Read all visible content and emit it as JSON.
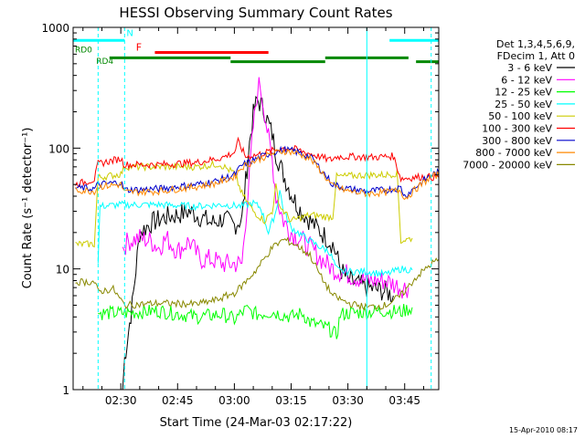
{
  "chart_data": {
    "type": "line",
    "title": "HESSI Observing Summary Count Rates",
    "xlabel": "Start Time (24-Mar-03 02:17:22)",
    "ylabel": "Count Rate (s⁻¹ detector⁻¹)",
    "yscale": "log",
    "ylim": [
      1,
      1000
    ],
    "xlim_minutes": [
      17.4,
      114
    ],
    "x_ticks": [
      {
        "label": "02:30",
        "t": 30
      },
      {
        "label": "02:45",
        "t": 45
      },
      {
        "label": "03:00",
        "t": 60
      },
      {
        "label": "03:15",
        "t": 75
      },
      {
        "label": "03:30",
        "t": 90
      },
      {
        "label": "03:45",
        "t": 105
      }
    ],
    "y_ticks": [
      {
        "label": "1",
        "v": 1
      },
      {
        "label": "10",
        "v": 10
      },
      {
        "label": "100",
        "v": 100
      },
      {
        "label": "1000",
        "v": 1000
      }
    ],
    "legend": {
      "header": [
        "Det 1,3,4,5,6,9,",
        "FDecim 1, Att 0"
      ],
      "placement": "right"
    },
    "series": [
      {
        "name": "3 - 6 keV",
        "color": "#000000",
        "points": [
          [
            30.5,
            1
          ],
          [
            31,
            1.8
          ],
          [
            32,
            3
          ],
          [
            33,
            5
          ],
          [
            34,
            10
          ],
          [
            35,
            20
          ],
          [
            38,
            24
          ],
          [
            42,
            27
          ],
          [
            45,
            28
          ],
          [
            48,
            30
          ],
          [
            51,
            27
          ],
          [
            54,
            24
          ],
          [
            57,
            26
          ],
          [
            60,
            23
          ],
          [
            62,
            26
          ],
          [
            64,
            110
          ],
          [
            65,
            190
          ],
          [
            66,
            250
          ],
          [
            67,
            230
          ],
          [
            68,
            200
          ],
          [
            69,
            160
          ],
          [
            70,
            130
          ],
          [
            71,
            90
          ],
          [
            73,
            60
          ],
          [
            75,
            42
          ],
          [
            77,
            32
          ],
          [
            80,
            25
          ],
          [
            83,
            20
          ],
          [
            86,
            16
          ],
          [
            87,
            13
          ],
          [
            88,
            10
          ],
          [
            90,
            8
          ],
          [
            95,
            7
          ],
          [
            100,
            6.5
          ],
          [
            102,
            6
          ]
        ]
      },
      {
        "name": "6 - 12 keV",
        "color": "#ff00ff",
        "points": [
          [
            30.5,
            15
          ],
          [
            32,
            17
          ],
          [
            35,
            18
          ],
          [
            38,
            17
          ],
          [
            40,
            15
          ],
          [
            42,
            18
          ],
          [
            45,
            14
          ],
          [
            48,
            17
          ],
          [
            51,
            12
          ],
          [
            54,
            12
          ],
          [
            57,
            11
          ],
          [
            60,
            11
          ],
          [
            62,
            11
          ],
          [
            64,
            60
          ],
          [
            65,
            150
          ],
          [
            66,
            280
          ],
          [
            66.5,
            330
          ],
          [
            67,
            300
          ],
          [
            68,
            200
          ],
          [
            69,
            120
          ],
          [
            70,
            80
          ],
          [
            71,
            40
          ],
          [
            73,
            25
          ],
          [
            75,
            20
          ],
          [
            77,
            18
          ],
          [
            80,
            15
          ],
          [
            83,
            12
          ],
          [
            86,
            10
          ],
          [
            90,
            9
          ],
          [
            95,
            8
          ],
          [
            100,
            8
          ],
          [
            104,
            7
          ],
          [
            106,
            7
          ]
        ]
      },
      {
        "name": "12 - 25 keV",
        "color": "#00ff00",
        "points": [
          [
            24,
            4.3
          ],
          [
            30,
            4.3
          ],
          [
            40,
            4.5
          ],
          [
            50,
            4
          ],
          [
            57,
            4.2
          ],
          [
            60,
            3.8
          ],
          [
            63,
            4.6
          ],
          [
            66,
            4.2
          ],
          [
            70,
            4.4
          ],
          [
            75,
            4
          ],
          [
            78,
            4.3
          ],
          [
            80,
            3.6
          ],
          [
            85,
            3.2
          ],
          [
            87,
            2.8
          ],
          [
            88,
            4.2
          ],
          [
            90,
            4.3
          ],
          [
            100,
            4.5
          ],
          [
            104,
            4.4
          ],
          [
            107,
            4.8
          ]
        ]
      },
      {
        "name": "25 - 50 keV",
        "color": "#00ffff",
        "points": [
          [
            24,
            11
          ],
          [
            24.5,
            33
          ],
          [
            30,
            34
          ],
          [
            40,
            34
          ],
          [
            50,
            33
          ],
          [
            57,
            34
          ],
          [
            62,
            33
          ],
          [
            65,
            35
          ],
          [
            67,
            32
          ],
          [
            69,
            20
          ],
          [
            71,
            30
          ],
          [
            72,
            45
          ],
          [
            73,
            30
          ],
          [
            75,
            22
          ],
          [
            80,
            17
          ],
          [
            83,
            15
          ],
          [
            85,
            14
          ],
          [
            86,
            12
          ],
          [
            87,
            10
          ],
          [
            88,
            9.5
          ],
          [
            95,
            9.5
          ],
          [
            100,
            9
          ],
          [
            104,
            10
          ],
          [
            107,
            9.8
          ]
        ]
      },
      {
        "name": "50 - 100 keV",
        "color": "#cccc00",
        "points": [
          [
            18,
            16
          ],
          [
            23,
            16
          ],
          [
            24,
            57
          ],
          [
            30,
            61
          ],
          [
            31,
            70
          ],
          [
            40,
            70
          ],
          [
            50,
            70
          ],
          [
            56,
            74
          ],
          [
            60,
            62
          ],
          [
            62,
            42
          ],
          [
            65,
            30
          ],
          [
            68,
            25
          ],
          [
            70,
            30
          ],
          [
            71,
            48
          ],
          [
            72,
            33
          ],
          [
            75,
            25
          ],
          [
            80,
            28
          ],
          [
            84,
            27
          ],
          [
            86,
            27
          ],
          [
            87,
            58
          ],
          [
            95,
            60
          ],
          [
            100,
            60
          ],
          [
            103,
            62
          ],
          [
            104,
            17
          ],
          [
            107,
            18
          ]
        ]
      },
      {
        "name": "100 - 300 keV",
        "color": "#ff0000",
        "points": [
          [
            18,
            50
          ],
          [
            23,
            55
          ],
          [
            24,
            74
          ],
          [
            30,
            82
          ],
          [
            31,
            73
          ],
          [
            40,
            73
          ],
          [
            50,
            76
          ],
          [
            54,
            80
          ],
          [
            57,
            84
          ],
          [
            60,
            92
          ],
          [
            61,
            113
          ],
          [
            63,
            85
          ],
          [
            66,
            88
          ],
          [
            70,
            95
          ],
          [
            73,
            100
          ],
          [
            76,
            98
          ],
          [
            80,
            90
          ],
          [
            85,
            80
          ],
          [
            86,
            81
          ],
          [
            87,
            85
          ],
          [
            92,
            85
          ],
          [
            97,
            84
          ],
          [
            102,
            86
          ],
          [
            104,
            56
          ],
          [
            110,
            58
          ],
          [
            114,
            57
          ]
        ]
      },
      {
        "name": "300 - 800 keV",
        "color": "#0000cc",
        "points": [
          [
            18,
            47
          ],
          [
            23,
            46
          ],
          [
            24,
            50
          ],
          [
            30,
            52
          ],
          [
            31,
            45
          ],
          [
            40,
            46
          ],
          [
            50,
            50
          ],
          [
            55,
            53
          ],
          [
            60,
            60
          ],
          [
            62,
            72
          ],
          [
            66,
            82
          ],
          [
            70,
            92
          ],
          [
            73,
            97
          ],
          [
            76,
            94
          ],
          [
            80,
            85
          ],
          [
            83,
            66
          ],
          [
            86,
            50
          ],
          [
            90,
            46
          ],
          [
            95,
            44
          ],
          [
            100,
            45
          ],
          [
            104,
            47
          ],
          [
            105,
            40
          ],
          [
            108,
            48
          ],
          [
            112,
            60
          ],
          [
            114,
            63
          ]
        ]
      },
      {
        "name": "800 - 7000 keV",
        "color": "#ff8800",
        "points": [
          [
            18,
            45
          ],
          [
            23,
            44
          ],
          [
            24,
            48
          ],
          [
            30,
            50
          ],
          [
            31,
            43
          ],
          [
            40,
            44
          ],
          [
            50,
            48
          ],
          [
            55,
            51
          ],
          [
            60,
            58
          ],
          [
            62,
            70
          ],
          [
            66,
            80
          ],
          [
            70,
            90
          ],
          [
            73,
            95
          ],
          [
            76,
            92
          ],
          [
            80,
            82
          ],
          [
            83,
            64
          ],
          [
            86,
            48
          ],
          [
            90,
            44
          ],
          [
            95,
            42
          ],
          [
            100,
            43
          ],
          [
            104,
            45
          ],
          [
            105,
            38
          ],
          [
            108,
            46
          ],
          [
            112,
            58
          ],
          [
            114,
            60
          ]
        ]
      },
      {
        "name": "7000 - 20000 keV",
        "color": "#888800",
        "points": [
          [
            18,
            7.8
          ],
          [
            23,
            7.8
          ],
          [
            24,
            6.5
          ],
          [
            28,
            6.8
          ],
          [
            30,
            5.5
          ],
          [
            31,
            5
          ],
          [
            40,
            5.2
          ],
          [
            50,
            5.1
          ],
          [
            55,
            5.5
          ],
          [
            60,
            6.3
          ],
          [
            63,
            7.8
          ],
          [
            66,
            10
          ],
          [
            70,
            15
          ],
          [
            73,
            17.5
          ],
          [
            76,
            16
          ],
          [
            80,
            13
          ],
          [
            83,
            8.5
          ],
          [
            86,
            6
          ],
          [
            90,
            5.2
          ],
          [
            95,
            4.8
          ],
          [
            100,
            5
          ],
          [
            104,
            6
          ],
          [
            108,
            8.5
          ],
          [
            112,
            11
          ],
          [
            114,
            12
          ]
        ]
      }
    ],
    "annotations": {
      "flags": [
        {
          "label": "N",
          "color": "#00ffff"
        },
        {
          "label": "F",
          "color": "#ff0000"
        },
        {
          "label": "RD0",
          "color": "#008800"
        },
        {
          "label": "RD4",
          "color": "#008800"
        }
      ],
      "vertical_markers": [
        {
          "t": 24,
          "color": "#00ffff",
          "style": "dashed"
        },
        {
          "t": 31,
          "color": "#00ffff",
          "style": "dashed"
        },
        {
          "t": 95,
          "color": "#00ffff",
          "style": "solid"
        },
        {
          "t": 112,
          "color": "#00ffff",
          "style": "dashed"
        }
      ],
      "bars": [
        {
          "color": "#00ffff",
          "t0": 17.4,
          "t1": 31,
          "level": 780
        },
        {
          "color": "#00ffff",
          "t0": 101,
          "t1": 114,
          "level": 780
        },
        {
          "color": "#ff0000",
          "t0": 39,
          "t1": 69,
          "level": 620
        },
        {
          "color": "#008800",
          "t0": 27,
          "t1": 59,
          "level": 560
        },
        {
          "color": "#008800",
          "t0": 59,
          "t1": 84,
          "level": 520
        },
        {
          "color": "#008800",
          "t0": 84,
          "t1": 106,
          "level": 560
        },
        {
          "color": "#008800",
          "t0": 108,
          "t1": 114,
          "level": 520
        }
      ]
    },
    "footer_timestamp": "15-Apr-2010 08:17"
  }
}
